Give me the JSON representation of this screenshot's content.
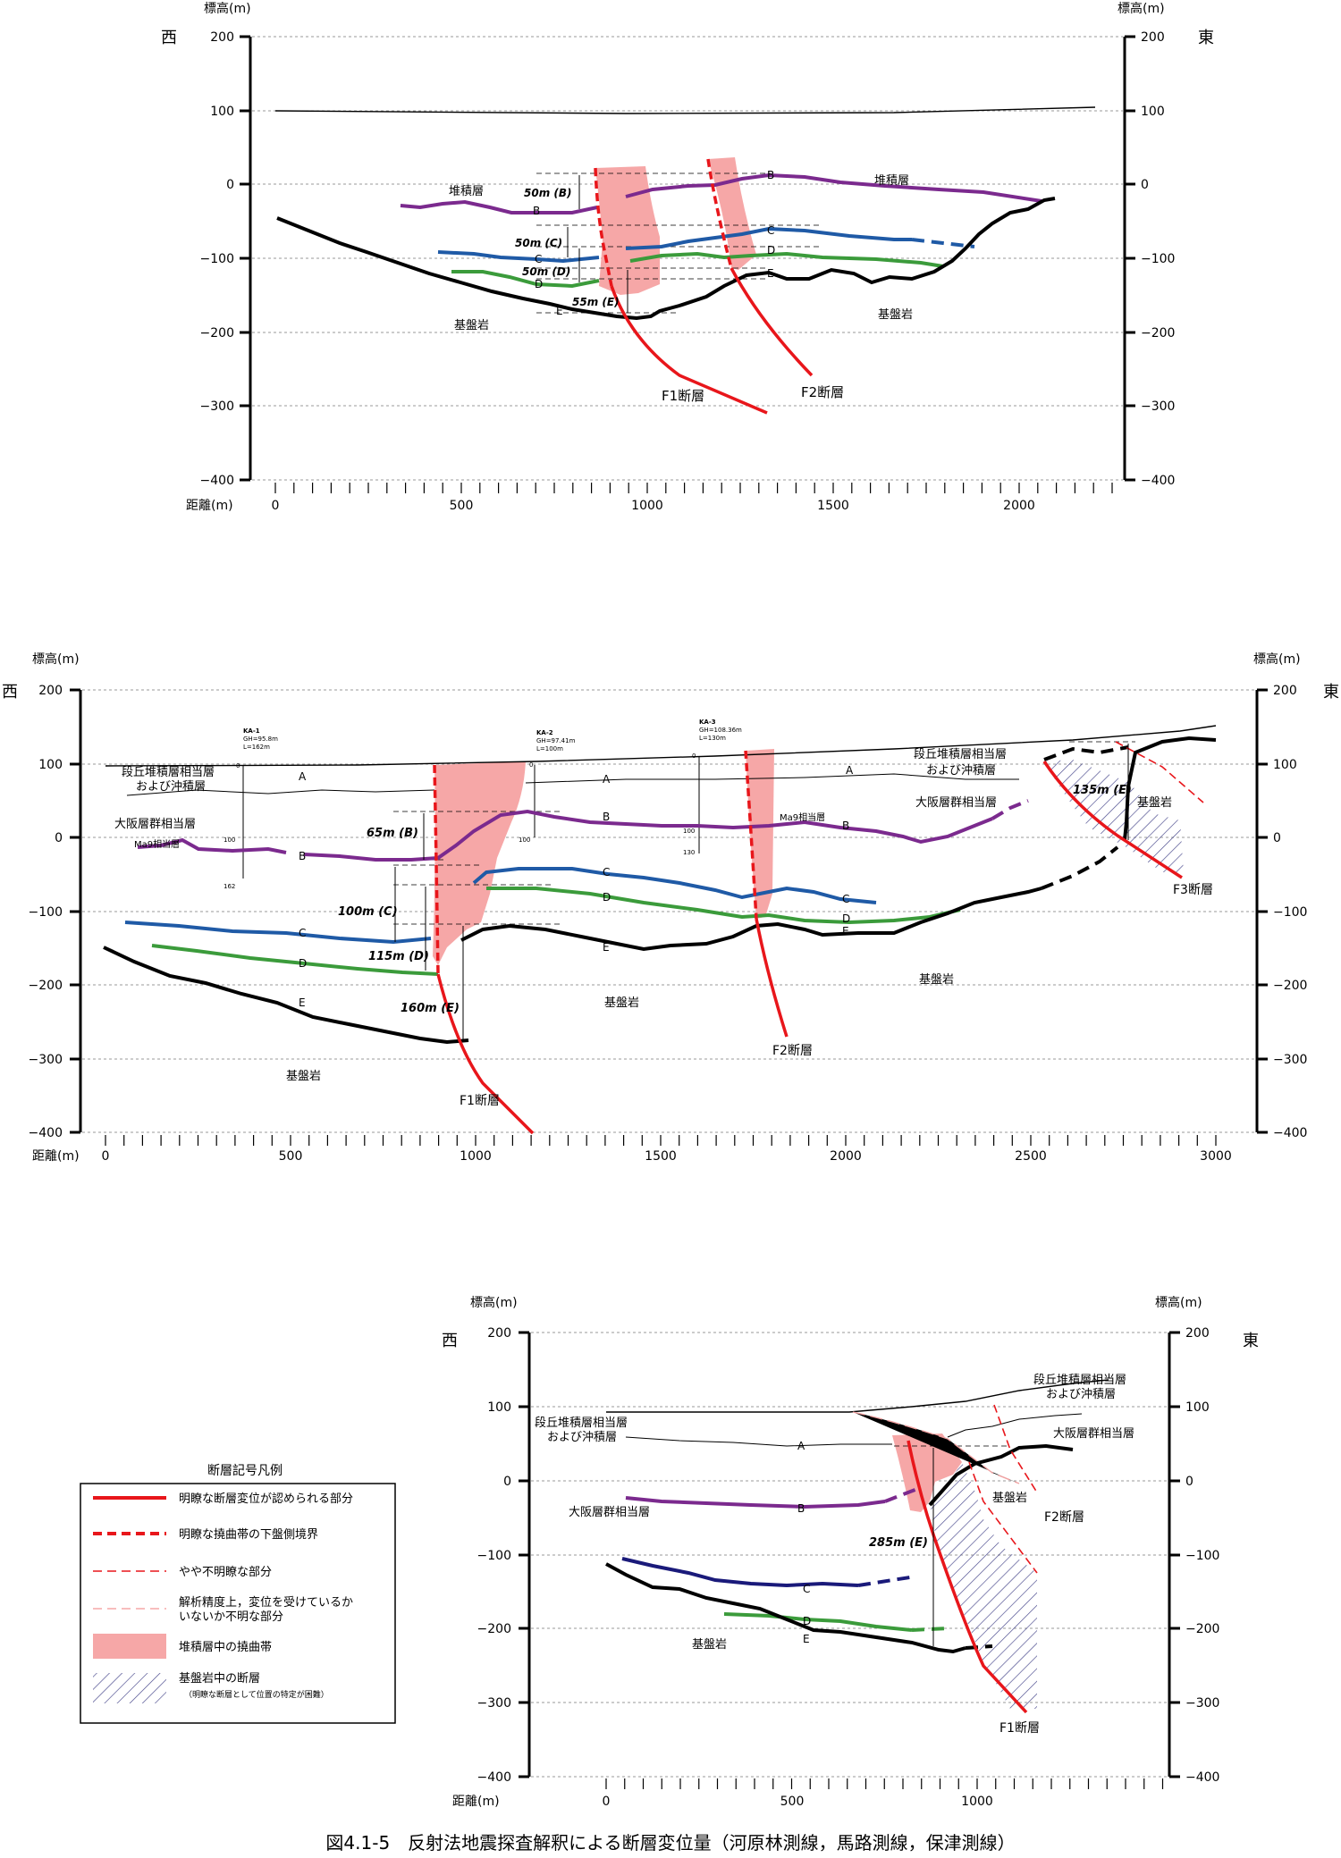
{
  "colors": {
    "fault": "#e8161b",
    "flexure": "#f6a7a7",
    "B": "#7b2a8e",
    "C": "#1f5aa6",
    "D": "#3b9b3b",
    "E": "#000000",
    "C3": "#1a1a7a"
  },
  "axes": {
    "y_title": "標高(m)",
    "x_title": "距離(m)",
    "west": "西",
    "east": "東",
    "y_ticks": [
      "200",
      "100",
      "0",
      "−100",
      "−200",
      "−300",
      "−400"
    ]
  },
  "profile1": {
    "x_ticks": [
      "0",
      "500",
      "1000",
      "1500",
      "2000"
    ],
    "labels": {
      "deposit_w": "堆積層",
      "deposit_e": "堆積層",
      "base_w": "基盤岩",
      "base_e": "基盤岩",
      "f1": "F1断層",
      "f2": "F2断層",
      "dB": "50m (B)",
      "dC": "50m (C)",
      "dD": "50m (D)",
      "dE": "55m (E)",
      "B1": "B",
      "B2": "B",
      "C1": "C",
      "C2": "C",
      "D1": "D",
      "D2": "D",
      "E1": "E",
      "E2": "E"
    }
  },
  "profile2": {
    "x_ticks": [
      "0",
      "500",
      "1000",
      "1500",
      "2000",
      "2500",
      "3000"
    ],
    "labels": {
      "terrace_1": "段丘堆積層相当層",
      "terrace_2": "および沖積層",
      "osaka": "大阪層群相当層",
      "ma9": "Ma9相当層",
      "terrace_e1": "段丘堆積層相当層",
      "terrace_e2": "および沖積層",
      "osaka_e": "大阪層群相当層",
      "ma9_e": "Ma9相当層",
      "base1": "基盤岩",
      "base2": "基盤岩",
      "base3": "基盤岩",
      "base4": "基盤岩",
      "f1": "F1断層",
      "f2": "F2断層",
      "f3": "F3断層",
      "dB": "65m (B)",
      "dC": "100m (C)",
      "dD": "115m (D)",
      "dE": "160m (E)",
      "dE3": "135m (E)",
      "A1": "A",
      "A2": "A",
      "A3": "A",
      "B1": "B",
      "B2": "B",
      "B3": "B",
      "C1": "C",
      "C2": "C",
      "C3": "C",
      "D1": "D",
      "D2": "D",
      "D3": "D",
      "E1": "E",
      "E2": "E",
      "E3": "E"
    },
    "boreholes": [
      {
        "name": "KA-1",
        "gh": "GH=95.8m",
        "len": "L=162m",
        "d0": "0",
        "d1": "100",
        "d2": "162"
      },
      {
        "name": "KA-2",
        "gh": "GH=97.41m",
        "len": "L=100m",
        "d0": "0",
        "d1": "100"
      },
      {
        "name": "KA-3",
        "gh": "GH=108.36m",
        "len": "L=130m",
        "d0": "0",
        "d1": "100",
        "d2": "130"
      }
    ]
  },
  "profile3": {
    "x_ticks": [
      "0",
      "500",
      "1000"
    ],
    "labels": {
      "terrace_w1": "段丘堆積層相当層",
      "terrace_w2": "および沖積層",
      "terrace_e1": "段丘堆積層相当層",
      "terrace_e2": "および沖積層",
      "osaka_w": "大阪層群相当層",
      "osaka_e": "大阪層群相当層",
      "base_w": "基盤岩",
      "base_e": "基盤岩",
      "f1": "F1断層",
      "f2": "F2断層",
      "dE": "285m (E)",
      "A": "A",
      "B": "B",
      "C": "C",
      "D": "D",
      "E": "E"
    }
  },
  "legend": {
    "title": "断層記号凡例",
    "items": [
      "明瞭な断層変位が認められる部分",
      "明瞭な撓曲帯の下盤側境界",
      "やや不明瞭な部分",
      "解析精度上，変位を受けているか",
      "いないか不明な部分",
      "堆積層中の撓曲帯",
      "基盤岩中の断層",
      "（明瞭な断層として位置の特定が困難）"
    ]
  },
  "caption": "図4.1-5　反射法地震探査解釈による断層変位量（河原林測線，馬路測線，保津測線）"
}
